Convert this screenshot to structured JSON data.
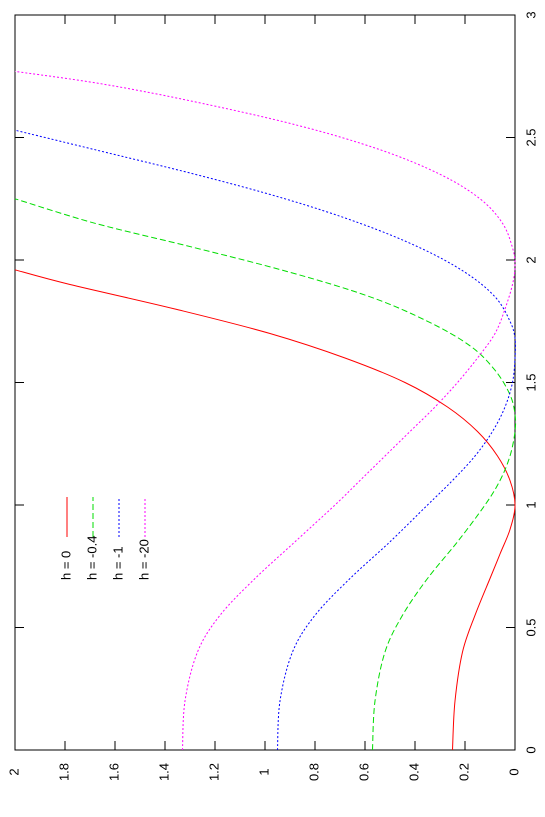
{
  "chart_data": {
    "type": "line",
    "title": "",
    "xlabel": "",
    "ylabel": "",
    "xlim": [
      0,
      3
    ],
    "ylim": [
      0,
      2
    ],
    "x_ticks": [
      "0",
      "0.5",
      "1",
      "1.5",
      "2",
      "2.5",
      "3"
    ],
    "y_ticks": [
      "0",
      "0.2",
      "0.4",
      "0.6",
      "0.8",
      "1",
      "1.2",
      "1.4",
      "1.6",
      "1.8",
      "2"
    ],
    "grid": false,
    "legend_position": "top-left",
    "series": [
      {
        "name": "h = 0",
        "color": "#ff0000",
        "dash": "solid",
        "points": [
          [
            0,
            0.25
          ],
          [
            0.2,
            0.24
          ],
          [
            0.4,
            0.21
          ],
          [
            0.55,
            0.16
          ],
          [
            0.7,
            0.1
          ],
          [
            0.8,
            0.06
          ],
          [
            0.9,
            0.02
          ],
          [
            1.0,
            0.0
          ],
          [
            1.1,
            0.02
          ],
          [
            1.2,
            0.07
          ],
          [
            1.3,
            0.15
          ],
          [
            1.4,
            0.27
          ],
          [
            1.5,
            0.44
          ],
          [
            1.6,
            0.68
          ],
          [
            1.7,
            0.98
          ],
          [
            1.8,
            1.36
          ],
          [
            1.9,
            1.78
          ],
          [
            1.96,
            2.0
          ]
        ]
      },
      {
        "name": "h = -0.4",
        "color": "#00dd00",
        "dash": "dashed",
        "points": [
          [
            0,
            0.57
          ],
          [
            0.2,
            0.56
          ],
          [
            0.4,
            0.52
          ],
          [
            0.55,
            0.45
          ],
          [
            0.7,
            0.35
          ],
          [
            0.85,
            0.23
          ],
          [
            1.0,
            0.12
          ],
          [
            1.1,
            0.06
          ],
          [
            1.2,
            0.02
          ],
          [
            1.3,
            0.0
          ],
          [
            1.37,
            0.0
          ],
          [
            1.45,
            0.02
          ],
          [
            1.55,
            0.08
          ],
          [
            1.65,
            0.18
          ],
          [
            1.75,
            0.35
          ],
          [
            1.85,
            0.58
          ],
          [
            1.95,
            0.9
          ],
          [
            2.05,
            1.28
          ],
          [
            2.15,
            1.68
          ],
          [
            2.25,
            2.0
          ]
        ]
      },
      {
        "name": "h = -1",
        "color": "#0000ff",
        "dash": "dotted",
        "points": [
          [
            0,
            0.95
          ],
          [
            0.2,
            0.94
          ],
          [
            0.4,
            0.89
          ],
          [
            0.55,
            0.8
          ],
          [
            0.7,
            0.66
          ],
          [
            0.85,
            0.5
          ],
          [
            1.0,
            0.35
          ],
          [
            1.1,
            0.25
          ],
          [
            1.2,
            0.16
          ],
          [
            1.3,
            0.09
          ],
          [
            1.4,
            0.04
          ],
          [
            1.5,
            0.01
          ],
          [
            1.6,
            0.0
          ],
          [
            1.68,
            0.0
          ],
          [
            1.75,
            0.02
          ],
          [
            1.85,
            0.08
          ],
          [
            1.95,
            0.2
          ],
          [
            2.05,
            0.38
          ],
          [
            2.15,
            0.62
          ],
          [
            2.25,
            0.92
          ],
          [
            2.35,
            1.28
          ],
          [
            2.45,
            1.68
          ],
          [
            2.53,
            2.0
          ]
        ]
      },
      {
        "name": "h = -20",
        "color": "#ff00ff",
        "dash": "dotted",
        "points": [
          [
            0,
            1.33
          ],
          [
            0.2,
            1.32
          ],
          [
            0.4,
            1.27
          ],
          [
            0.55,
            1.18
          ],
          [
            0.7,
            1.04
          ],
          [
            0.85,
            0.88
          ],
          [
            1.0,
            0.72
          ],
          [
            1.1,
            0.62
          ],
          [
            1.2,
            0.52
          ],
          [
            1.3,
            0.42
          ],
          [
            1.4,
            0.32
          ],
          [
            1.5,
            0.23
          ],
          [
            1.6,
            0.15
          ],
          [
            1.7,
            0.08
          ],
          [
            1.8,
            0.04
          ],
          [
            1.9,
            0.01
          ],
          [
            1.98,
            0.0
          ],
          [
            2.05,
            0.01
          ],
          [
            2.15,
            0.05
          ],
          [
            2.25,
            0.14
          ],
          [
            2.35,
            0.3
          ],
          [
            2.45,
            0.54
          ],
          [
            2.55,
            0.87
          ],
          [
            2.65,
            1.3
          ],
          [
            2.72,
            1.66
          ],
          [
            2.77,
            2.0
          ]
        ]
      }
    ]
  }
}
